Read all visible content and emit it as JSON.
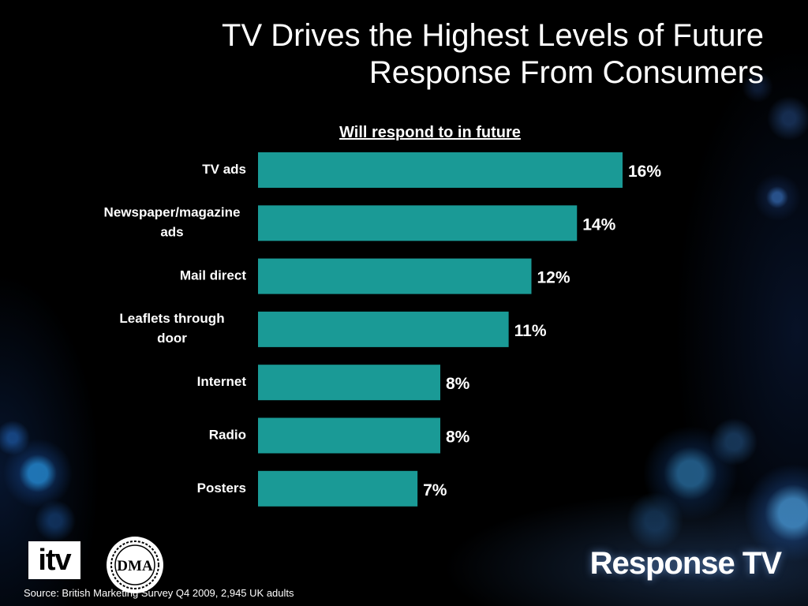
{
  "title_lines": [
    "TV Drives the Highest Levels of Future",
    "Response From Consumers"
  ],
  "chart_data": {
    "type": "bar",
    "orientation": "horizontal",
    "title": "Will respond to in future",
    "categories": [
      [
        "TV ads"
      ],
      [
        "Newspaper/magazine",
        "ads"
      ],
      [
        "Mail direct"
      ],
      [
        "Leaflets through",
        "door"
      ],
      [
        "Internet"
      ],
      [
        "Radio"
      ],
      [
        "Posters"
      ]
    ],
    "values": [
      16,
      14,
      12,
      11,
      8,
      8,
      7
    ],
    "value_labels": [
      "16%",
      "14%",
      "12%",
      "11%",
      "8%",
      "8%",
      "7%"
    ],
    "unit": "%",
    "xlim": [
      0,
      18
    ],
    "grid": false,
    "bar_color": "#1a9a96"
  },
  "logos": {
    "itv": "itv",
    "dma": "DMA",
    "response_tv": "Response TV"
  },
  "source": "Source: British Marketing Survey Q4 2009, 2,945 UK adults"
}
